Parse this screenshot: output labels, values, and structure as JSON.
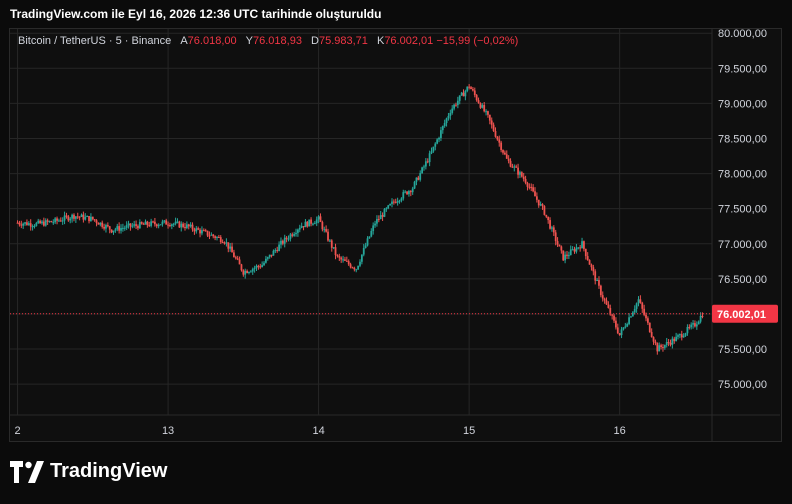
{
  "header": {
    "title": "TradingView.com ile Eyl 16, 2026 12:36 UTC tarihinde oluşturuldu"
  },
  "legend": {
    "symbol": "Bitcoin / TetherUS · 5 · Binance",
    "open_label": "A",
    "open": "76.018,00",
    "high_label": "Y",
    "high": "76.018,93",
    "low_label": "D",
    "low": "75.983,71",
    "close_label": "K",
    "close": "76.002,01",
    "change": "−15,99 (−0,02%)"
  },
  "brand": {
    "name": "TradingView"
  },
  "colors": {
    "up": "#26a69a",
    "down": "#ef5350",
    "price_tag": "#f23645",
    "grid": "#262626"
  },
  "chart_data": {
    "type": "candlestick",
    "x_tick_labels": [
      "2",
      "13",
      "14",
      "15",
      "16"
    ],
    "y_tick_labels": [
      "80.000,00",
      "79.500,00",
      "79.000,00",
      "78.500,00",
      "78.000,00",
      "77.500,00",
      "77.000,00",
      "76.500,00",
      "76.000,00",
      "75.500,00",
      "75.000,00"
    ],
    "y_ticks": [
      80000,
      79500,
      79000,
      78500,
      78000,
      77500,
      77000,
      76500,
      76000,
      75500,
      75000
    ],
    "ylim": [
      74560,
      80060
    ],
    "last_price": 76002.01,
    "last_price_label": "76.002,01",
    "series": [
      {
        "name": "Bitcoin / TetherUS",
        "x": [
          12.0,
          12.125,
          12.25,
          12.375,
          12.5,
          12.625,
          12.75,
          12.875,
          13.0,
          13.125,
          13.25,
          13.375,
          13.5,
          13.625,
          13.75,
          13.875,
          14.0,
          14.125,
          14.25,
          14.375,
          14.5,
          14.625,
          14.75,
          14.875,
          15.0,
          15.125,
          15.25,
          15.375,
          15.5,
          15.625,
          15.75,
          15.875,
          16.0,
          16.125,
          16.25,
          16.375,
          16.5,
          16.55
        ],
        "y": [
          77300,
          77280,
          77320,
          77400,
          77350,
          77200,
          77250,
          77280,
          77300,
          77250,
          77150,
          77050,
          76600,
          76700,
          77000,
          77250,
          77350,
          76800,
          76650,
          77300,
          77600,
          77800,
          78300,
          78900,
          79250,
          78800,
          78200,
          77900,
          77450,
          76800,
          77000,
          76300,
          75700,
          76200,
          75500,
          75650,
          75850,
          76000
        ]
      }
    ]
  }
}
